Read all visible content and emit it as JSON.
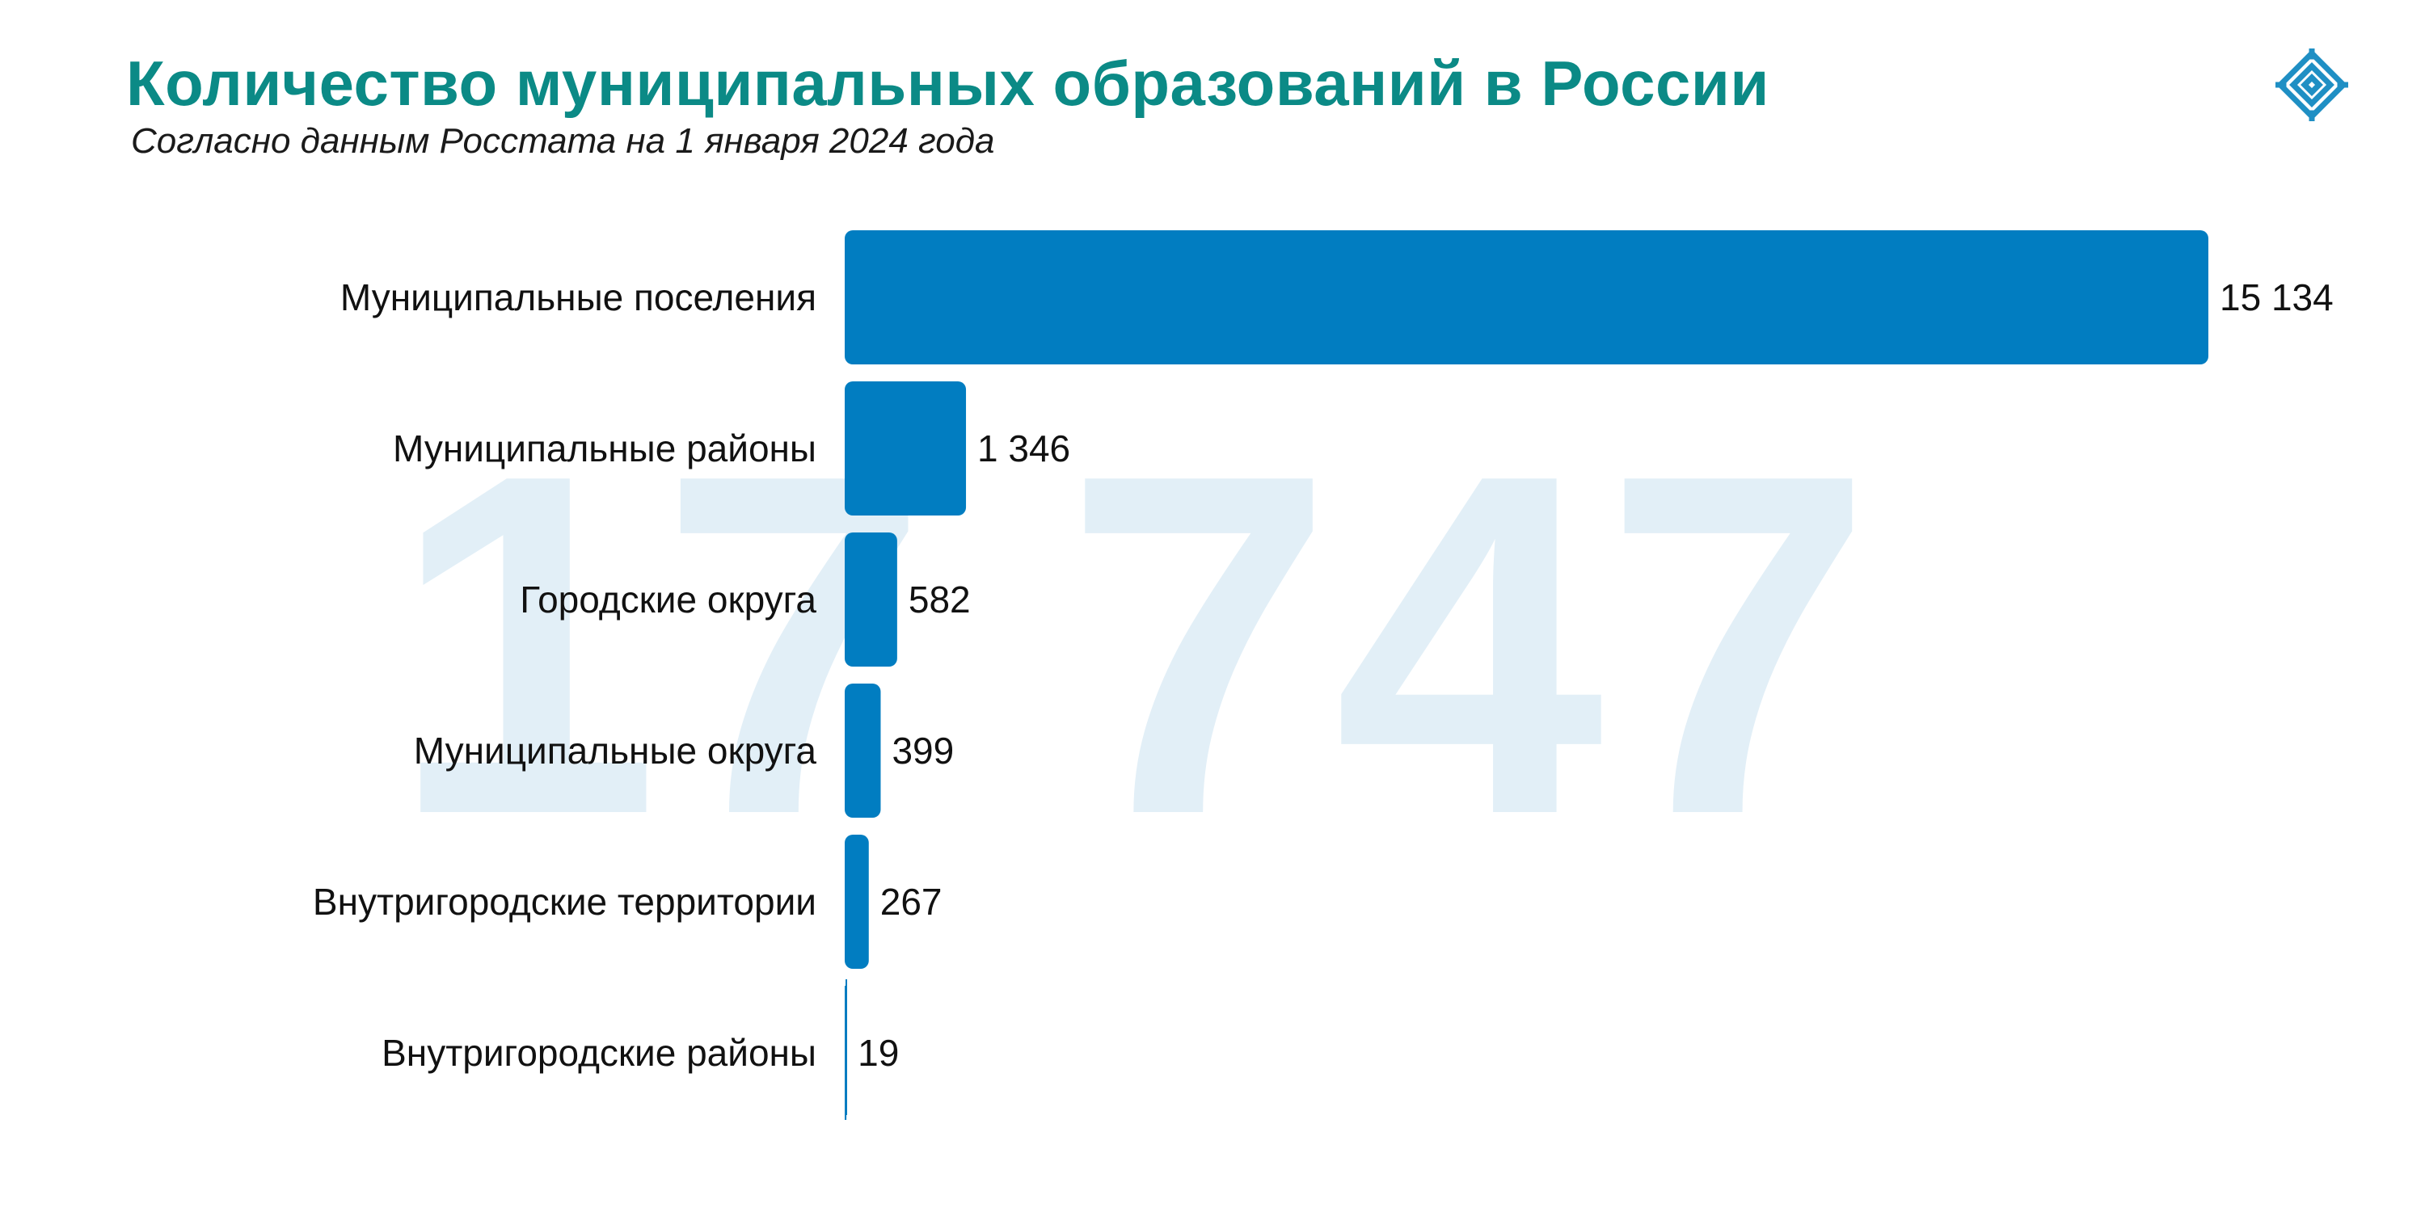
{
  "header": {
    "title": "Количество муниципальных образований в России",
    "subtitle": "Согласно данным Росстата на 1 января 2024 года"
  },
  "logo": {
    "icon": "ornament-logo-icon",
    "color": "#1f8fc4"
  },
  "colors": {
    "title": "#0b8a86",
    "bar": "#017dc1",
    "watermark": "#e2eff7"
  },
  "watermark_total": "17 747",
  "chart_data": {
    "type": "bar",
    "orientation": "horizontal",
    "categories": [
      "Муниципальные поселения",
      "Муниципальные районы",
      "Городские округа",
      "Муниципальные округа",
      "Внутригородские территории",
      "Внутригородские районы"
    ],
    "values": [
      15134,
      1346,
      582,
      399,
      267,
      19
    ],
    "value_labels": [
      "15 134",
      "1 346",
      "582",
      "399",
      "267",
      "19"
    ],
    "title": "Количество муниципальных образований в России",
    "subtitle": "Согласно данным Росстата на 1 января 2024 года",
    "xlim": [
      0,
      15134
    ],
    "grid": false,
    "legend": "none"
  }
}
